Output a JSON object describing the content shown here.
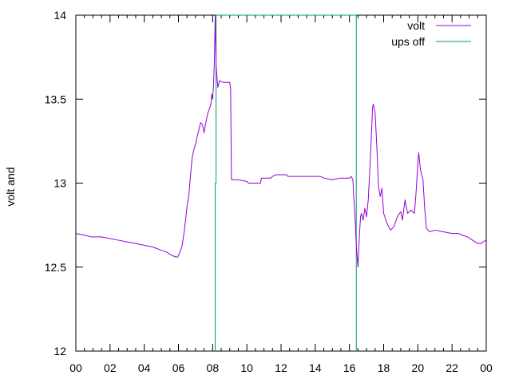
{
  "chart_data": {
    "type": "line",
    "title": "",
    "xlabel": "",
    "ylabel": "volt and",
    "xlim": [
      0,
      24
    ],
    "ylim": [
      12,
      14
    ],
    "x_tick_labels": [
      "00",
      "02",
      "04",
      "06",
      "08",
      "10",
      "12",
      "14",
      "16",
      "18",
      "20",
      "22",
      "00"
    ],
    "y_tick_labels": [
      "12",
      "12.5",
      "13",
      "13.5",
      "14"
    ],
    "grid": false,
    "legend_position": "top-right",
    "series": [
      {
        "name": "volt",
        "color": "#9400d3",
        "points": [
          [
            0,
            12.7
          ],
          [
            0.5,
            12.69
          ],
          [
            0.9,
            12.68
          ],
          [
            1.5,
            12.68
          ],
          [
            2.0,
            12.67
          ],
          [
            2.5,
            12.66
          ],
          [
            3.0,
            12.65
          ],
          [
            3.5,
            12.64
          ],
          [
            4.0,
            12.63
          ],
          [
            4.5,
            12.62
          ],
          [
            5.0,
            12.6
          ],
          [
            5.3,
            12.59
          ],
          [
            5.6,
            12.57
          ],
          [
            5.85,
            12.56
          ],
          [
            5.95,
            12.56
          ],
          [
            6.05,
            12.58
          ],
          [
            6.2,
            12.62
          ],
          [
            6.35,
            12.72
          ],
          [
            6.5,
            12.86
          ],
          [
            6.6,
            12.92
          ],
          [
            6.7,
            13.04
          ],
          [
            6.8,
            13.15
          ],
          [
            6.9,
            13.2
          ],
          [
            7.0,
            13.23
          ],
          [
            7.1,
            13.28
          ],
          [
            7.2,
            13.32
          ],
          [
            7.3,
            13.36
          ],
          [
            7.4,
            13.35
          ],
          [
            7.5,
            13.3
          ],
          [
            7.6,
            13.36
          ],
          [
            7.7,
            13.41
          ],
          [
            7.8,
            13.44
          ],
          [
            7.9,
            13.47
          ],
          [
            7.95,
            13.53
          ],
          [
            8.0,
            13.5
          ],
          [
            8.05,
            13.58
          ],
          [
            8.1,
            13.72
          ],
          [
            8.15,
            14.0
          ],
          [
            8.2,
            13.7
          ],
          [
            8.3,
            13.57
          ],
          [
            8.4,
            13.61
          ],
          [
            8.6,
            13.6
          ],
          [
            8.8,
            13.6
          ],
          [
            9.0,
            13.6
          ],
          [
            9.05,
            13.56
          ],
          [
            9.1,
            13.02
          ],
          [
            9.5,
            13.02
          ],
          [
            10.0,
            13.01
          ],
          [
            10.1,
            13.0
          ],
          [
            10.8,
            13.0
          ],
          [
            10.85,
            13.03
          ],
          [
            11.4,
            13.03
          ],
          [
            11.5,
            13.04
          ],
          [
            11.7,
            13.05
          ],
          [
            12.3,
            13.05
          ],
          [
            12.4,
            13.04
          ],
          [
            14.3,
            13.04
          ],
          [
            14.5,
            13.03
          ],
          [
            15.0,
            13.02
          ],
          [
            15.5,
            13.03
          ],
          [
            16.0,
            13.03
          ],
          [
            16.1,
            13.04
          ],
          [
            16.2,
            13.02
          ],
          [
            16.25,
            12.92
          ],
          [
            16.3,
            12.85
          ],
          [
            16.35,
            12.75
          ],
          [
            16.4,
            12.63
          ],
          [
            16.45,
            12.56
          ],
          [
            16.5,
            12.5
          ],
          [
            16.55,
            12.62
          ],
          [
            16.6,
            12.72
          ],
          [
            16.65,
            12.8
          ],
          [
            16.7,
            12.82
          ],
          [
            16.8,
            12.78
          ],
          [
            16.9,
            12.85
          ],
          [
            17.0,
            12.8
          ],
          [
            17.1,
            12.9
          ],
          [
            17.2,
            13.1
          ],
          [
            17.3,
            13.32
          ],
          [
            17.35,
            13.45
          ],
          [
            17.4,
            13.47
          ],
          [
            17.5,
            13.42
          ],
          [
            17.6,
            13.22
          ],
          [
            17.7,
            12.98
          ],
          [
            17.8,
            12.92
          ],
          [
            17.9,
            12.97
          ],
          [
            18.0,
            12.82
          ],
          [
            18.2,
            12.76
          ],
          [
            18.4,
            12.72
          ],
          [
            18.6,
            12.74
          ],
          [
            18.8,
            12.8
          ],
          [
            19.0,
            12.83
          ],
          [
            19.1,
            12.78
          ],
          [
            19.2,
            12.86
          ],
          [
            19.25,
            12.9
          ],
          [
            19.4,
            12.82
          ],
          [
            19.6,
            12.84
          ],
          [
            19.8,
            12.82
          ],
          [
            19.9,
            12.95
          ],
          [
            20.0,
            13.12
          ],
          [
            20.05,
            13.18
          ],
          [
            20.15,
            13.08
          ],
          [
            20.3,
            13.02
          ],
          [
            20.4,
            12.85
          ],
          [
            20.5,
            12.73
          ],
          [
            20.7,
            12.71
          ],
          [
            21.0,
            12.72
          ],
          [
            21.5,
            12.71
          ],
          [
            22.0,
            12.7
          ],
          [
            22.4,
            12.7
          ],
          [
            22.6,
            12.69
          ],
          [
            22.9,
            12.68
          ],
          [
            23.2,
            12.66
          ],
          [
            23.5,
            12.64
          ],
          [
            23.7,
            12.64
          ],
          [
            23.8,
            12.65
          ],
          [
            24.0,
            12.66
          ]
        ]
      },
      {
        "name": "ups off",
        "color": "#009e73",
        "points": [
          [
            8.15,
            12.0
          ],
          [
            8.15,
            13.0
          ],
          [
            8.2,
            13.0
          ],
          [
            8.2,
            14.0
          ],
          [
            16.4,
            14.0
          ],
          [
            16.4,
            12.0
          ]
        ]
      }
    ]
  }
}
